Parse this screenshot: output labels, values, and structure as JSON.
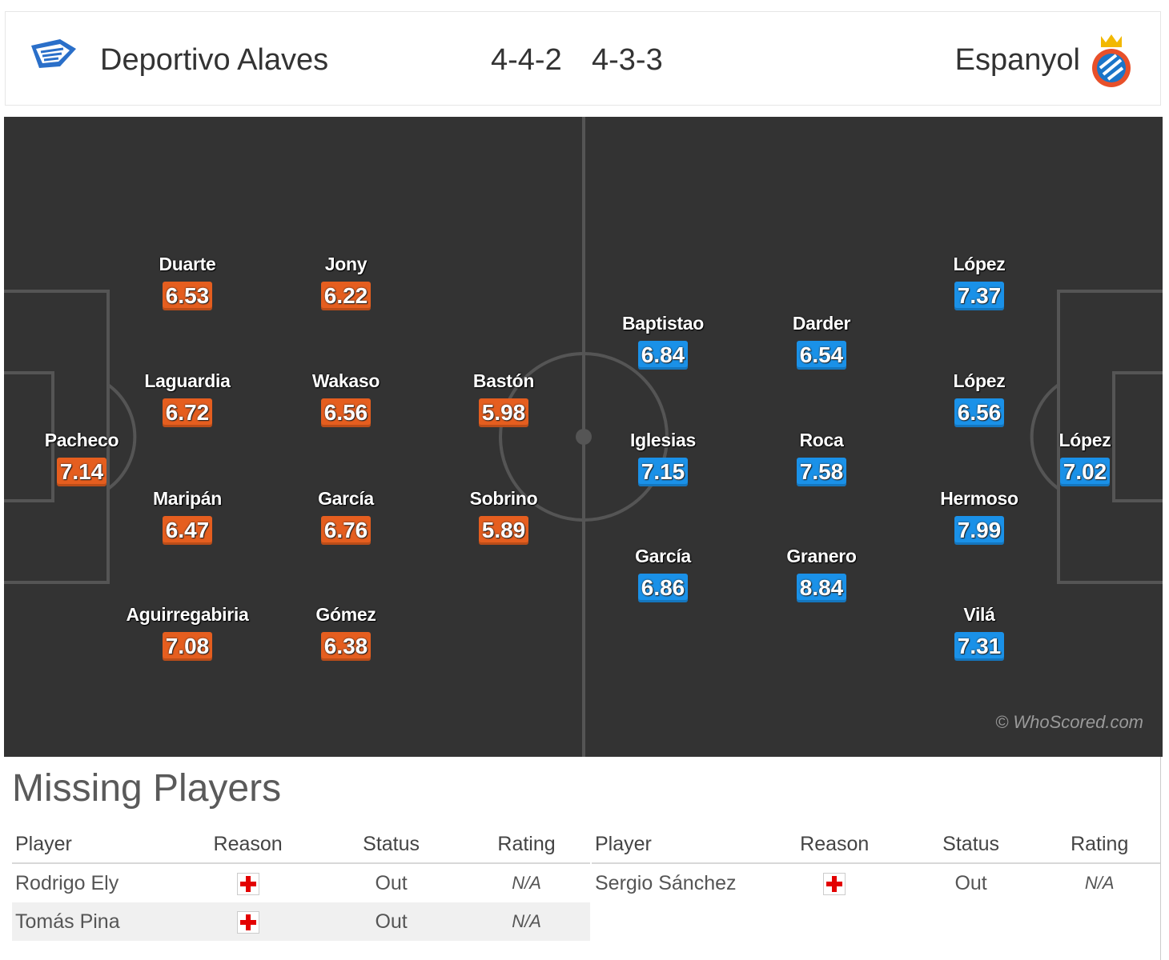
{
  "header": {
    "home_team": "Deportivo Alaves",
    "away_team": "Espanyol",
    "home_formation": "4-4-2",
    "away_formation": "4-3-3",
    "home_logo_icon": "alaves-crest-icon",
    "away_logo_icon": "espanyol-crest-icon"
  },
  "colors": {
    "home_rating_bg": "#e55e1f",
    "away_rating_bg": "#1a91e8",
    "pitch_bg": "#333333",
    "pitch_lines": "#555555"
  },
  "home_players": [
    {
      "name": "Pacheco",
      "rating": "7.14"
    },
    {
      "name": "Duarte",
      "rating": "6.53"
    },
    {
      "name": "Laguardia",
      "rating": "6.72"
    },
    {
      "name": "Maripán",
      "rating": "6.47"
    },
    {
      "name": "Aguirregabiria",
      "rating": "7.08"
    },
    {
      "name": "Jony",
      "rating": "6.22"
    },
    {
      "name": "Wakaso",
      "rating": "6.56"
    },
    {
      "name": "García",
      "rating": "6.76"
    },
    {
      "name": "Gómez",
      "rating": "6.38"
    },
    {
      "name": "Bastón",
      "rating": "5.98"
    },
    {
      "name": "Sobrino",
      "rating": "5.89"
    }
  ],
  "away_players": [
    {
      "name": "López",
      "rating": "7.02"
    },
    {
      "name": "López",
      "rating": "7.37"
    },
    {
      "name": "López",
      "rating": "6.56"
    },
    {
      "name": "Hermoso",
      "rating": "7.99"
    },
    {
      "name": "Vilá",
      "rating": "7.31"
    },
    {
      "name": "Darder",
      "rating": "6.54"
    },
    {
      "name": "Roca",
      "rating": "7.58"
    },
    {
      "name": "Granero",
      "rating": "8.84"
    },
    {
      "name": "Baptistao",
      "rating": "6.84"
    },
    {
      "name": "Iglesias",
      "rating": "7.15"
    },
    {
      "name": "García",
      "rating": "6.86"
    }
  ],
  "watermark": "© WhoScored.com",
  "missing": {
    "title": "Missing Players",
    "columns": [
      "Player",
      "Reason",
      "Status",
      "Rating"
    ],
    "home": [
      {
        "player": "Rodrigo Ely",
        "reason_icon": "injury-cross-icon",
        "status": "Out",
        "rating": "N/A"
      },
      {
        "player": "Tomás Pina",
        "reason_icon": "injury-cross-icon",
        "status": "Out",
        "rating": "N/A"
      }
    ],
    "away": [
      {
        "player": "Sergio Sánchez",
        "reason_icon": "injury-cross-icon",
        "status": "Out",
        "rating": "N/A"
      }
    ]
  }
}
